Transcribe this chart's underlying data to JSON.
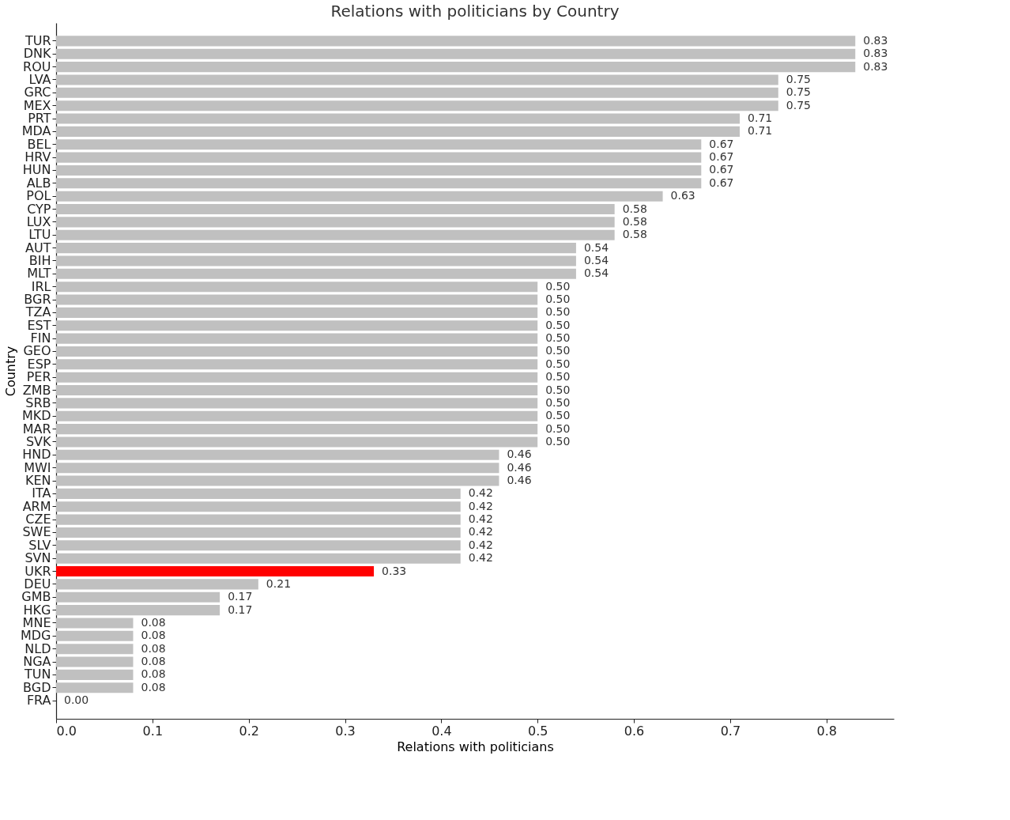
{
  "chart_data": {
    "type": "bar",
    "orientation": "horizontal",
    "title": "Relations with politicians by Country",
    "xlabel": "Relations with politicians",
    "ylabel": "Country",
    "categories": [
      "TUR",
      "DNK",
      "ROU",
      "LVA",
      "GRC",
      "MEX",
      "PRT",
      "MDA",
      "BEL",
      "HRV",
      "HUN",
      "ALB",
      "POL",
      "CYP",
      "LUX",
      "LTU",
      "AUT",
      "BIH",
      "MLT",
      "IRL",
      "BGR",
      "TZA",
      "EST",
      "FIN",
      "GEO",
      "ESP",
      "PER",
      "ZMB",
      "SRB",
      "MKD",
      "MAR",
      "SVK",
      "HND",
      "MWI",
      "KEN",
      "ITA",
      "ARM",
      "CZE",
      "SWE",
      "SLV",
      "SVN",
      "UKR",
      "DEU",
      "GMB",
      "HKG",
      "MNE",
      "MDG",
      "NLD",
      "NGA",
      "TUN",
      "BGD",
      "FRA"
    ],
    "values": [
      0.83,
      0.83,
      0.83,
      0.75,
      0.75,
      0.75,
      0.71,
      0.71,
      0.67,
      0.67,
      0.67,
      0.67,
      0.63,
      0.58,
      0.58,
      0.58,
      0.54,
      0.54,
      0.54,
      0.5,
      0.5,
      0.5,
      0.5,
      0.5,
      0.5,
      0.5,
      0.5,
      0.5,
      0.5,
      0.5,
      0.5,
      0.5,
      0.46,
      0.46,
      0.46,
      0.42,
      0.42,
      0.42,
      0.42,
      0.42,
      0.42,
      0.33,
      0.21,
      0.17,
      0.17,
      0.08,
      0.08,
      0.08,
      0.08,
      0.08,
      0.08,
      0.0
    ],
    "value_labels": [
      "0.83",
      "0.83",
      "0.83",
      "0.75",
      "0.75",
      "0.75",
      "0.71",
      "0.71",
      "0.67",
      "0.67",
      "0.67",
      "0.67",
      "0.63",
      "0.58",
      "0.58",
      "0.58",
      "0.54",
      "0.54",
      "0.54",
      "0.50",
      "0.50",
      "0.50",
      "0.50",
      "0.50",
      "0.50",
      "0.50",
      "0.50",
      "0.50",
      "0.50",
      "0.50",
      "0.50",
      "0.50",
      "0.46",
      "0.46",
      "0.46",
      "0.42",
      "0.42",
      "0.42",
      "0.42",
      "0.42",
      "0.42",
      "0.33",
      "0.21",
      "0.17",
      "0.17",
      "0.08",
      "0.08",
      "0.08",
      "0.08",
      "0.08",
      "0.08",
      "0.00"
    ],
    "colors": [
      "#c0c0c0",
      "#c0c0c0",
      "#c0c0c0",
      "#c0c0c0",
      "#c0c0c0",
      "#c0c0c0",
      "#c0c0c0",
      "#c0c0c0",
      "#c0c0c0",
      "#c0c0c0",
      "#c0c0c0",
      "#c0c0c0",
      "#c0c0c0",
      "#c0c0c0",
      "#c0c0c0",
      "#c0c0c0",
      "#c0c0c0",
      "#c0c0c0",
      "#c0c0c0",
      "#c0c0c0",
      "#c0c0c0",
      "#c0c0c0",
      "#c0c0c0",
      "#c0c0c0",
      "#c0c0c0",
      "#c0c0c0",
      "#c0c0c0",
      "#c0c0c0",
      "#c0c0c0",
      "#c0c0c0",
      "#c0c0c0",
      "#c0c0c0",
      "#c0c0c0",
      "#c0c0c0",
      "#c0c0c0",
      "#c0c0c0",
      "#c0c0c0",
      "#c0c0c0",
      "#c0c0c0",
      "#c0c0c0",
      "#c0c0c0",
      "#ff0000",
      "#c0c0c0",
      "#c0c0c0",
      "#c0c0c0",
      "#c0c0c0",
      "#c0c0c0",
      "#c0c0c0",
      "#c0c0c0",
      "#c0c0c0",
      "#c0c0c0",
      "#c0c0c0"
    ],
    "xlim": [
      0,
      0.87
    ],
    "xticks": [
      {
        "value": 0,
        "label": "0.0"
      },
      0.1,
      0.2,
      0.3,
      0.4,
      0.5,
      0.6,
      0.7,
      0.8
    ],
    "grid": false
  }
}
